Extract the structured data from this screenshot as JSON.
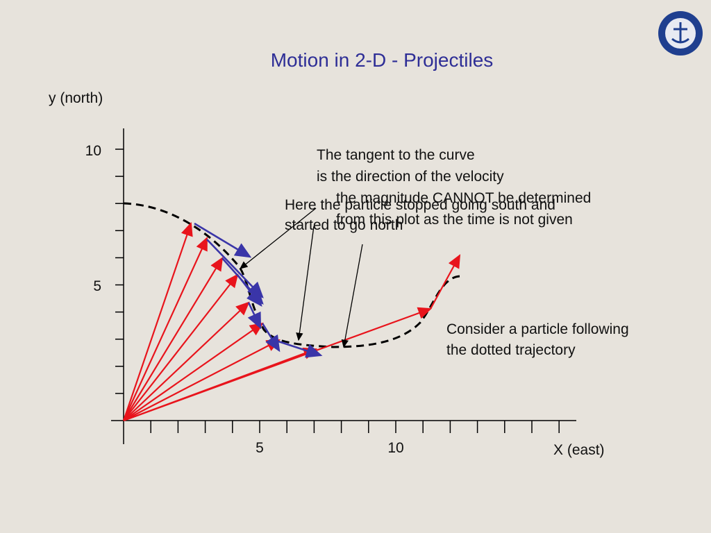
{
  "slide": {
    "title": "Motion in 2-D - Projectiles",
    "y_axis_label": "y (north)",
    "x_axis_label": "X (east)",
    "y_tick_labels": [
      "10",
      "5"
    ],
    "x_tick_labels": [
      "5",
      "10"
    ],
    "annotations": {
      "tangent": [
        "The tangent to the curve",
        "is the direction of the velocity"
      ],
      "magnitude": [
        "the magnitude CANNOT be determined",
        "from this plot as the time is not given"
      ],
      "stopped": [
        "Here the particle stopped going south and",
        "started to go north"
      ],
      "consider": [
        "Consider a particle following",
        "the dotted trajectory"
      ]
    }
  }
}
